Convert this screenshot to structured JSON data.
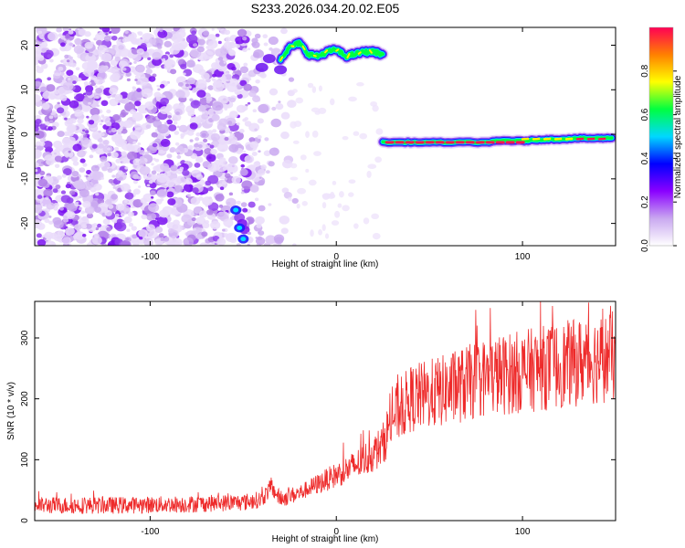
{
  "title": "S233.2026.034.20.02.E05",
  "chart_data": [
    {
      "type": "heatmap",
      "name": "spectrogram",
      "xlabel": "Height of straight line (km)",
      "ylabel": "Frequency (Hz)",
      "xlim": [
        -162,
        150
      ],
      "ylim": [
        -25,
        24
      ],
      "xticks": [
        -100,
        0,
        100
      ],
      "yticks": [
        -20,
        -10,
        0,
        10,
        20
      ],
      "colorbar": {
        "label": "Normalized spectral amplitude",
        "range": [
          0,
          1
        ],
        "ticks": [
          0.0,
          0.2,
          0.4,
          0.6,
          0.8
        ],
        "tick_labels": [
          "0.0",
          "0.2",
          "0.4",
          "0.6",
          "0.8"
        ],
        "colors": [
          "#ffffff",
          "#c9a8f0",
          "#8a00ff",
          "#0000ff",
          "#00d8ff",
          "#00ff40",
          "#ffff00",
          "#ff8000",
          "#ff0055"
        ]
      },
      "tracks": [
        {
          "name": "upper-track",
          "x": [
            -30,
            -25,
            -20,
            -15,
            -10,
            -5,
            0,
            5,
            10,
            15,
            20,
            25
          ],
          "y": [
            17,
            19.5,
            20.5,
            18,
            17.5,
            18.5,
            19,
            17.5,
            18,
            18.5,
            18.5,
            18
          ]
        },
        {
          "name": "lower-track",
          "x": [
            25,
            40,
            60,
            80,
            90,
            100,
            110,
            120,
            130,
            140,
            148
          ],
          "y": [
            -1.8,
            -1.8,
            -1.8,
            -1.8,
            -1.4,
            -1.5,
            -1.2,
            -1.1,
            -0.9,
            -0.9,
            -0.8
          ]
        }
      ]
    },
    {
      "type": "line",
      "name": "snr",
      "xlabel": "Height of straight line (km)",
      "ylabel": "SNR (10 * v/v)",
      "xlim": [
        -162,
        150
      ],
      "ylim": [
        0,
        360
      ],
      "xticks": [
        -100,
        0,
        100
      ],
      "yticks": [
        0,
        100,
        200,
        300
      ],
      "color": "#ee2a2a",
      "trend": {
        "x": [
          -162,
          -120,
          -80,
          -50,
          -40,
          -35,
          -30,
          -20,
          -10,
          0,
          10,
          20,
          25,
          30,
          35,
          40,
          60,
          80,
          100,
          120,
          140,
          150
        ],
        "y": [
          25,
          25,
          27,
          30,
          35,
          55,
          35,
          45,
          60,
          75,
          90,
          110,
          125,
          170,
          185,
          200,
          215,
          235,
          245,
          255,
          265,
          270
        ]
      }
    }
  ]
}
